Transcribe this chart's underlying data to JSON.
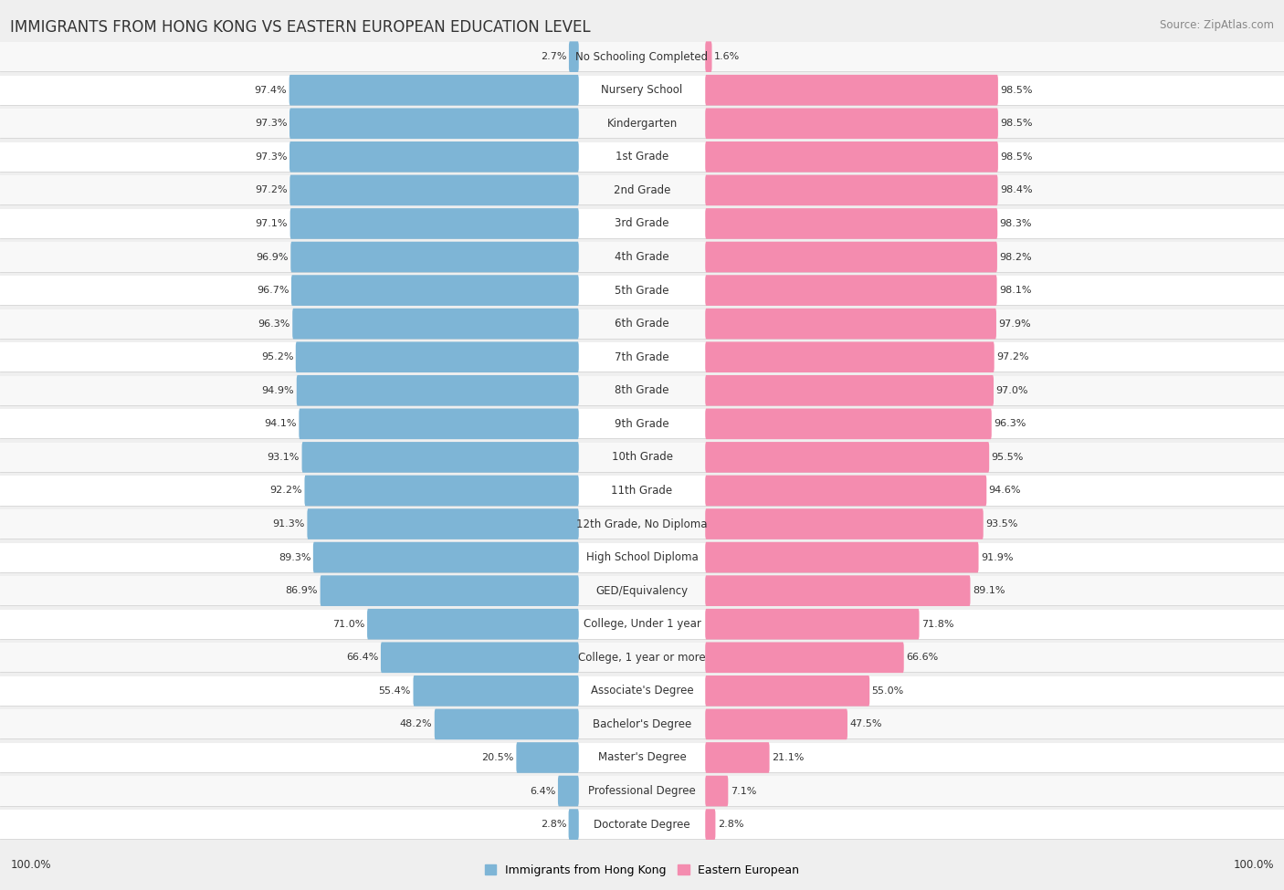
{
  "title": "IMMIGRANTS FROM HONG KONG VS EASTERN EUROPEAN EDUCATION LEVEL",
  "source": "Source: ZipAtlas.com",
  "categories": [
    "No Schooling Completed",
    "Nursery School",
    "Kindergarten",
    "1st Grade",
    "2nd Grade",
    "3rd Grade",
    "4th Grade",
    "5th Grade",
    "6th Grade",
    "7th Grade",
    "8th Grade",
    "9th Grade",
    "10th Grade",
    "11th Grade",
    "12th Grade, No Diploma",
    "High School Diploma",
    "GED/Equivalency",
    "College, Under 1 year",
    "College, 1 year or more",
    "Associate's Degree",
    "Bachelor's Degree",
    "Master's Degree",
    "Professional Degree",
    "Doctorate Degree"
  ],
  "hong_kong": [
    2.7,
    97.4,
    97.3,
    97.3,
    97.2,
    97.1,
    96.9,
    96.7,
    96.3,
    95.2,
    94.9,
    94.1,
    93.1,
    92.2,
    91.3,
    89.3,
    86.9,
    71.0,
    66.4,
    55.4,
    48.2,
    20.5,
    6.4,
    2.8
  ],
  "eastern_european": [
    1.6,
    98.5,
    98.5,
    98.5,
    98.4,
    98.3,
    98.2,
    98.1,
    97.9,
    97.2,
    97.0,
    96.3,
    95.5,
    94.6,
    93.5,
    91.9,
    89.1,
    71.8,
    66.6,
    55.0,
    47.5,
    21.1,
    7.1,
    2.8
  ],
  "hk_color": "#7eb5d6",
  "ee_color": "#f48caf",
  "bg_color": "#efefef",
  "row_light": "#f8f8f8",
  "row_dark": "#e8e8e8",
  "title_fontsize": 12,
  "source_fontsize": 8.5,
  "cat_fontsize": 8.5,
  "val_fontsize": 8.0,
  "legend_fontsize": 9,
  "footer_fontsize": 8.5
}
